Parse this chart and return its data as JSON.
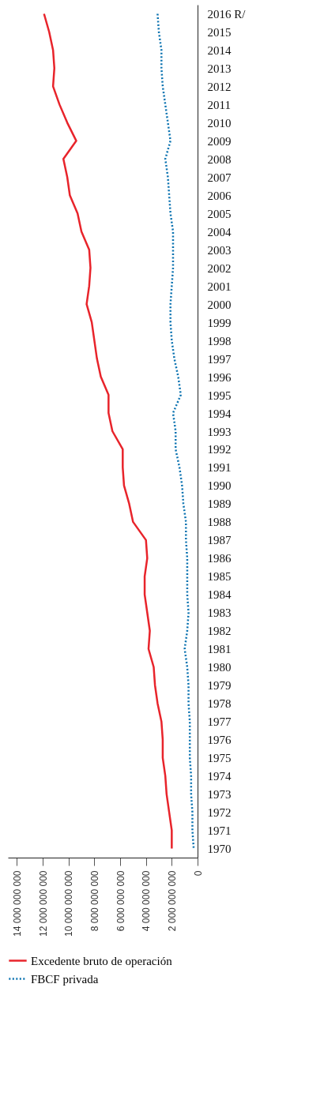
{
  "chart_data": {
    "type": "line",
    "orientation": "horizontal",
    "categories": [
      "2016 R/",
      "2015",
      "2014",
      "2013",
      "2012",
      "2011",
      "2010",
      "2009",
      "2008",
      "2007",
      "2006",
      "2005",
      "2004",
      "2003",
      "2002",
      "2001",
      "2000",
      "1999",
      "1998",
      "1997",
      "1996",
      "1995",
      "1994",
      "1993",
      "1992",
      "1991",
      "1990",
      "1989",
      "1988",
      "1987",
      "1986",
      "1985",
      "1984",
      "1983",
      "1982",
      "1981",
      "1980",
      "1979",
      "1978",
      "1977",
      "1976",
      "1975",
      "1974",
      "1973",
      "1972",
      "1971",
      "1970"
    ],
    "series": [
      {
        "name": "Excedente bruto de operación",
        "color": "#e8242b",
        "line_style": "solid",
        "values": [
          11900000000,
          11500000000,
          11200000000,
          11100000000,
          11200000000,
          10700000000,
          10100000000,
          9400000000,
          10400000000,
          10100000000,
          9900000000,
          9300000000,
          9000000000,
          8400000000,
          8300000000,
          8400000000,
          8600000000,
          8200000000,
          8000000000,
          7800000000,
          7500000000,
          6900000000,
          6900000000,
          6600000000,
          5800000000,
          5800000000,
          5700000000,
          5300000000,
          5000000000,
          4000000000,
          3900000000,
          4100000000,
          4100000000,
          3900000000,
          3700000000,
          3800000000,
          3400000000,
          3300000000,
          3100000000,
          2800000000,
          2700000000,
          2700000000,
          2500000000,
          2400000000,
          2200000000,
          2000000000,
          2000000000
        ]
      },
      {
        "name": "FBCF privada",
        "color": "#0a72b0",
        "line_style": "dotted",
        "values": [
          3100000000,
          3000000000,
          2800000000,
          2800000000,
          2700000000,
          2500000000,
          2300000000,
          2100000000,
          2500000000,
          2300000000,
          2200000000,
          2100000000,
          1900000000,
          1900000000,
          1900000000,
          2000000000,
          2100000000,
          2100000000,
          2000000000,
          1800000000,
          1500000000,
          1300000000,
          1900000000,
          1700000000,
          1700000000,
          1400000000,
          1200000000,
          1100000000,
          900000000,
          900000000,
          800000000,
          800000000,
          800000000,
          700000000,
          800000000,
          1000000000,
          800000000,
          700000000,
          700000000,
          600000000,
          600000000,
          600000000,
          500000000,
          500000000,
          400000000,
          400000000,
          300000000
        ]
      }
    ],
    "xlim": [
      14700000000,
      0
    ],
    "xticks": [
      0,
      {
        "value": 2000000000,
        "label": "2 000 000 000"
      },
      {
        "value": 4000000000,
        "label": "4 000 000 000"
      },
      {
        "value": 6000000000,
        "label": "6 000 000 000"
      },
      {
        "value": 8000000000,
        "label": "8 000 000 000"
      },
      {
        "value": 10000000000,
        "label": "10 000 000 000"
      },
      {
        "value": 12000000000,
        "label": "12 000 000 000"
      },
      {
        "value": 14000000000,
        "label": "14 000 000 000"
      }
    ],
    "legend": "bottom",
    "grid": false
  }
}
